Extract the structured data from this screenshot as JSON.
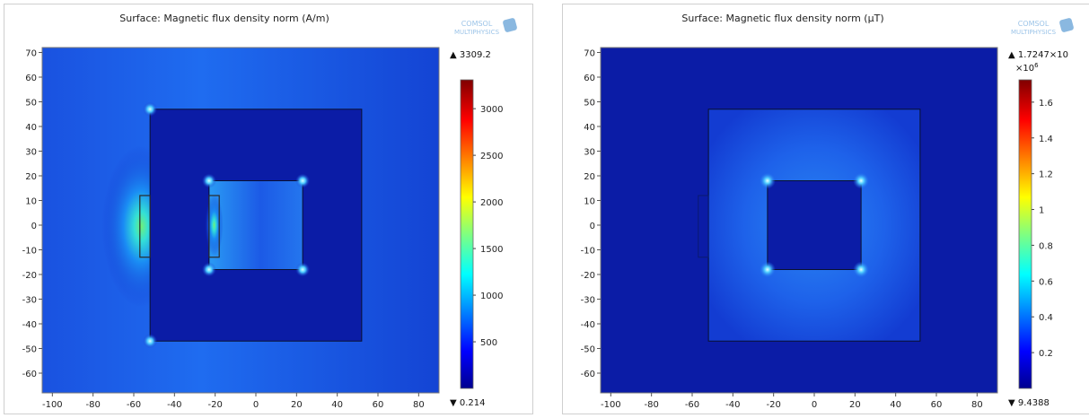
{
  "chart_data": [
    {
      "type": "heatmap",
      "title": "Surface: Magnetic flux density norm (A/m)",
      "xlim": [
        -105,
        90
      ],
      "ylim": [
        -68,
        72
      ],
      "x_ticks": [
        "-100",
        "-80",
        "-60",
        "-40",
        "-20",
        "0",
        "20",
        "40",
        "60",
        "80"
      ],
      "x_tick_values": [
        -100,
        -80,
        -60,
        -40,
        -20,
        0,
        20,
        40,
        60,
        80
      ],
      "y_ticks": [
        "70",
        "60",
        "50",
        "40",
        "30",
        "20",
        "10",
        "0",
        "-10",
        "-20",
        "-30",
        "-40",
        "-50",
        "-60"
      ],
      "y_tick_values": [
        70,
        60,
        50,
        40,
        30,
        20,
        10,
        0,
        -10,
        -20,
        -30,
        -40,
        -50,
        -60
      ],
      "colorbar": {
        "max_label": "3309.2",
        "min_label": "0.214",
        "max": 3309.2,
        "min": 0.214,
        "exponent_label": "",
        "ticks": [
          "3000",
          "2500",
          "2000",
          "1500",
          "1000",
          "500"
        ],
        "tick_values": [
          3000,
          2500,
          2000,
          1500,
          1000,
          500
        ]
      },
      "geometry": {
        "core_outer": [
          -52,
          47,
          52,
          -47
        ],
        "core_window": [
          -23,
          18,
          23,
          -18
        ],
        "coils": [
          [
            -57,
            12,
            -52,
            -13
          ],
          [
            -23,
            12,
            -18,
            -13
          ]
        ]
      }
    },
    {
      "type": "heatmap",
      "title": "Surface: Magnetic flux density norm (µT)",
      "xlim": [
        -105,
        90
      ],
      "ylim": [
        -68,
        72
      ],
      "x_ticks": [
        "-100",
        "-80",
        "-60",
        "-40",
        "-20",
        "0",
        "20",
        "40",
        "60",
        "80"
      ],
      "x_tick_values": [
        -100,
        -80,
        -60,
        -40,
        -20,
        0,
        20,
        40,
        60,
        80
      ],
      "y_ticks": [
        "70",
        "60",
        "50",
        "40",
        "30",
        "20",
        "10",
        "0",
        "-10",
        "-20",
        "-30",
        "-40",
        "-50",
        "-60"
      ],
      "y_tick_values": [
        70,
        60,
        50,
        40,
        30,
        20,
        10,
        0,
        -10,
        -20,
        -30,
        -40,
        -50,
        -60
      ],
      "colorbar": {
        "max_label": "1.7247×10",
        "min_label": "9.4388",
        "max": 1.7247,
        "min": 9.4388e-06,
        "exponent_label": "×10",
        "exponent_power": "6",
        "ticks": [
          "1.6",
          "1.4",
          "1.2",
          "1",
          "0.8",
          "0.6",
          "0.4",
          "0.2"
        ],
        "tick_values": [
          1.6,
          1.4,
          1.2,
          1.0,
          0.8,
          0.6,
          0.4,
          0.2
        ]
      },
      "geometry": {
        "core_outer": [
          -52,
          47,
          52,
          -47
        ],
        "core_window": [
          -23,
          18,
          23,
          -18
        ],
        "coils": [
          [
            -57,
            12,
            -52,
            -13
          ]
        ]
      }
    }
  ],
  "watermark": [
    "COMSOL",
    "MULTIPHYSICS"
  ],
  "colors": {
    "field_low": "#0c20b8",
    "field_mid": "#1f6cf0",
    "field_high": "#2ff0d0",
    "core": "#0b1ca6",
    "plot_background": "#0b1ca6",
    "coil_outline": "#2a2a2a"
  }
}
